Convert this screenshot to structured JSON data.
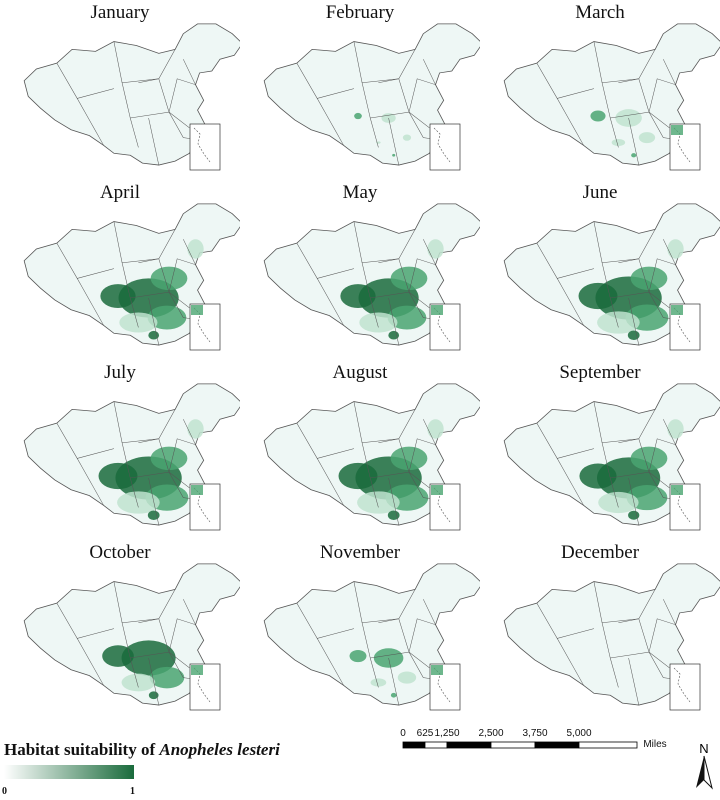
{
  "months": [
    "January",
    "February",
    "March",
    "April",
    "May",
    "June",
    "July",
    "August",
    "September",
    "October",
    "November",
    "December"
  ],
  "suitability_level": [
    0.0,
    0.1,
    0.3,
    0.85,
    0.85,
    0.95,
    0.95,
    0.95,
    0.9,
    0.75,
    0.35,
    0.0
  ],
  "legend": {
    "title_prefix": "Habitat suitability of ",
    "species": "Anopheles lesteri",
    "min_label": "0",
    "max_label": "1",
    "color_low": "#ffffff",
    "color_high": "#1a6b3c"
  },
  "scale_bar": {
    "ticks": [
      "0",
      "625",
      "1,250",
      "2,500",
      "3,750",
      "5,000"
    ],
    "unit": "Miles"
  },
  "north_label": "N",
  "colors": {
    "map_fill": "#eef7f5",
    "map_stroke": "#555555",
    "suit_dark": "#1a6b3c",
    "suit_mid": "#4aa571",
    "suit_light": "#bfe3cf"
  }
}
